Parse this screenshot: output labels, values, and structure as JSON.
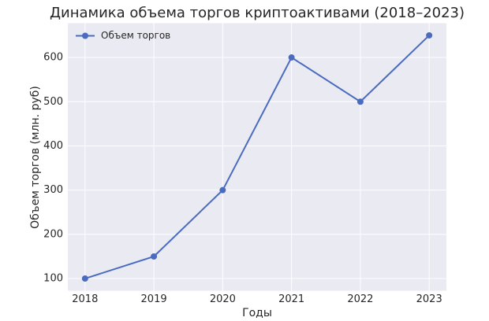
{
  "chart_data": {
    "type": "line",
    "title": "Динамика объема торгов криптоактивами (2018–2023)",
    "xlabel": "Годы",
    "ylabel": "Объем торгов (млн. руб)",
    "x": [
      2018,
      2019,
      2020,
      2021,
      2022,
      2023
    ],
    "series": [
      {
        "name": "Объем торгов",
        "color": "#4a6bbf",
        "values": [
          100,
          150,
          300,
          600,
          500,
          650
        ]
      }
    ],
    "xlim": [
      2017.75,
      2023.25
    ],
    "xticks": [
      2018,
      2019,
      2020,
      2021,
      2022,
      2023
    ],
    "ylim": [
      72.5,
      677.5
    ],
    "yticks": [
      100,
      200,
      300,
      400,
      500,
      600
    ],
    "grid": true,
    "legend": "upper left"
  }
}
